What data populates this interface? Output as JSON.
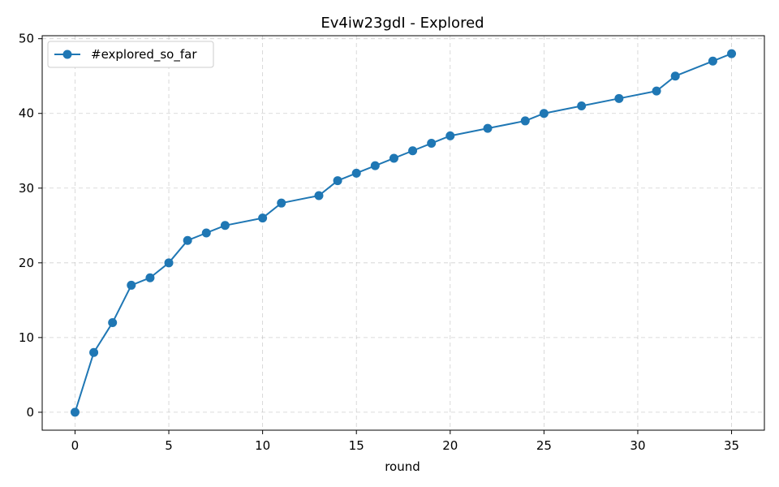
{
  "chart_data": {
    "type": "line",
    "title": "Ev4iw23gdI - Explored",
    "xlabel": "round",
    "ylabel": "",
    "xlim": [
      -1.75,
      36.75
    ],
    "ylim": [
      -2.4,
      50.4
    ],
    "xticks": [
      0,
      5,
      10,
      15,
      20,
      25,
      30,
      35
    ],
    "yticks": [
      0,
      10,
      20,
      30,
      40,
      50
    ],
    "grid": true,
    "legend_position": "top-left",
    "series": [
      {
        "name": "#explored_so_far",
        "color": "#1f77b4",
        "marker": "circle",
        "x": [
          0,
          1,
          2,
          3,
          4,
          5,
          6,
          7,
          8,
          10,
          11,
          13,
          14,
          15,
          16,
          17,
          18,
          19,
          20,
          22,
          24,
          25,
          27,
          29,
          31,
          32,
          34,
          35
        ],
        "y": [
          0,
          8,
          12,
          17,
          18,
          20,
          23,
          24,
          25,
          26,
          28,
          29,
          31,
          32,
          33,
          34,
          35,
          36,
          37,
          38,
          39,
          40,
          41,
          42,
          43,
          45,
          47,
          48
        ]
      }
    ]
  }
}
